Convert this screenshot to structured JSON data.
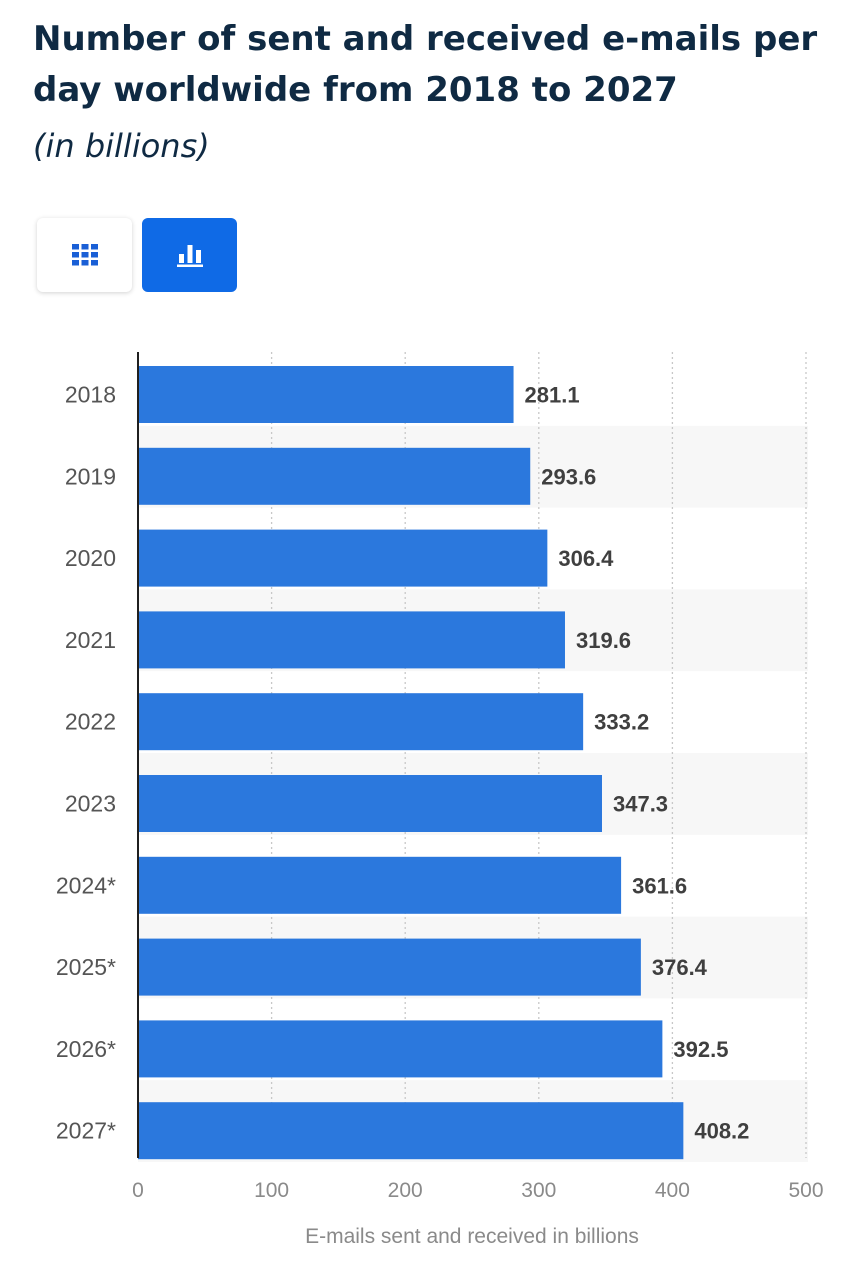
{
  "header": {
    "title": "Number of sent and received e-mails per day worldwide from 2018 to 2027",
    "subtitle": "(in billions)"
  },
  "toolbar": {
    "table_view_icon": "table-grid-icon",
    "chart_view_icon": "bar-chart-icon",
    "active_view": "chart"
  },
  "colors": {
    "bar": "#2b78dd",
    "accent": "#0f6ae6",
    "title": "#0f2a43",
    "band": "#f7f7f7"
  },
  "chart_data": {
    "type": "bar",
    "orientation": "horizontal",
    "categories": [
      "2018",
      "2019",
      "2020",
      "2021",
      "2022",
      "2023",
      "2024*",
      "2025*",
      "2026*",
      "2027*"
    ],
    "values": [
      281.1,
      293.6,
      306.4,
      319.6,
      333.2,
      347.3,
      361.6,
      376.4,
      392.5,
      408.2
    ],
    "value_labels": [
      "281.1",
      "293.6",
      "306.4",
      "319.6",
      "333.2",
      "347.3",
      "361.6",
      "376.4",
      "392.5",
      "408.2"
    ],
    "xlabel": "E-mails sent and received in billions",
    "ylabel": "",
    "xlim": [
      0,
      500
    ],
    "xticks": [
      0,
      100,
      200,
      300,
      400,
      500
    ],
    "xtick_labels": [
      "0",
      "100",
      "200",
      "300",
      "400",
      "500"
    ],
    "grid": true,
    "alternating_row_bands": true
  }
}
